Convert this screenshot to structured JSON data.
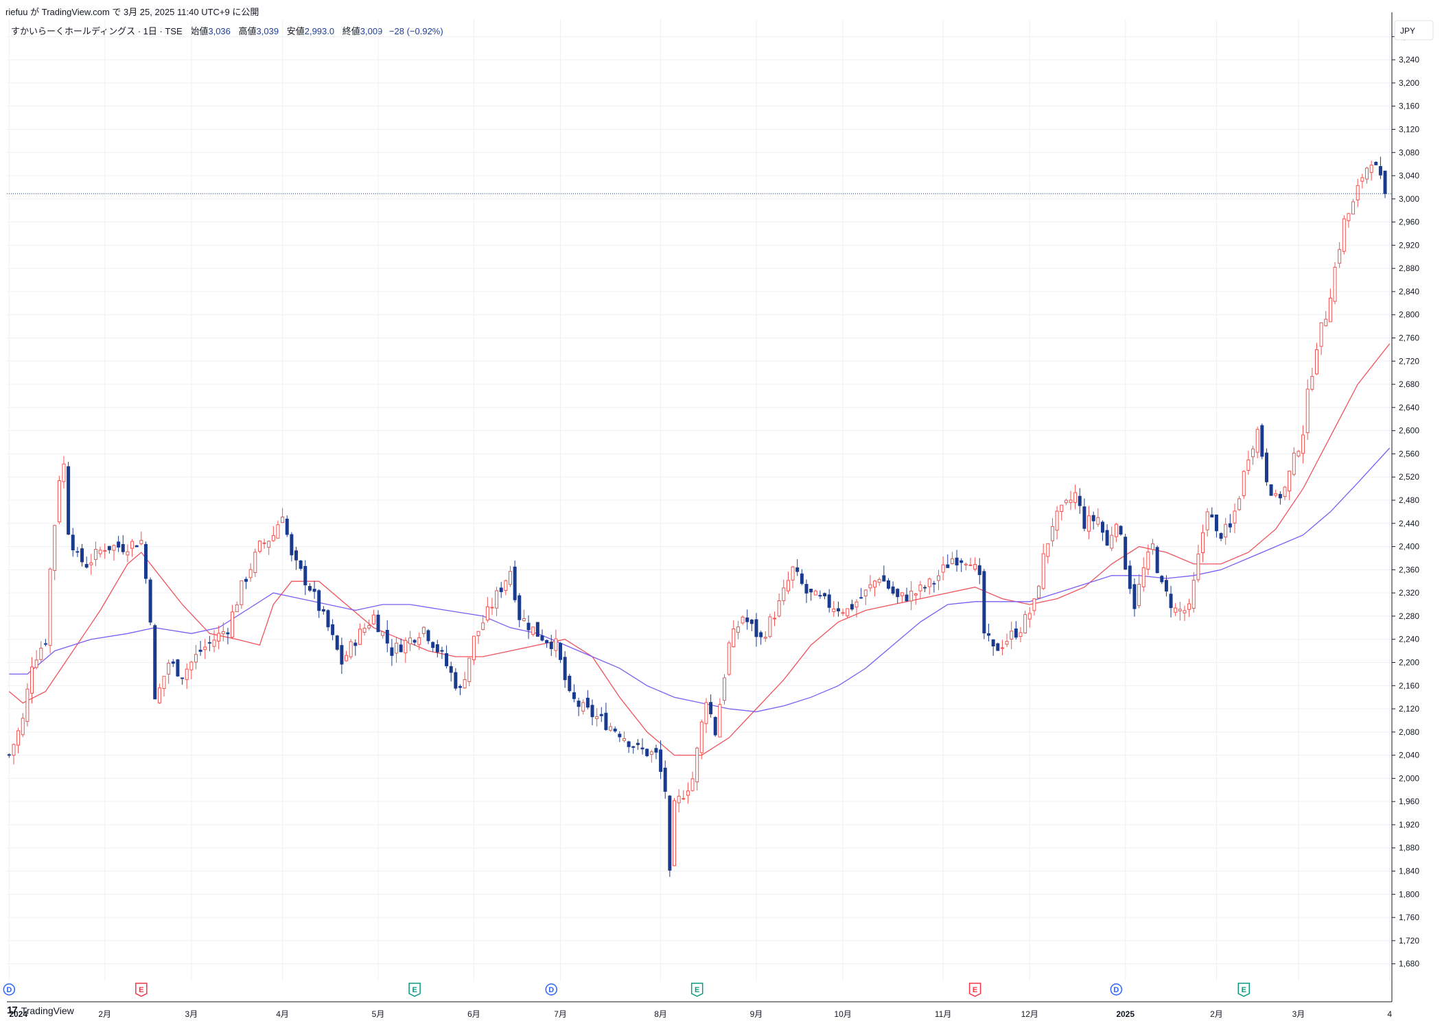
{
  "header": {
    "published": "riefuu が TradingView.com で 3月 25, 2025 11:40 UTC+9 に公開"
  },
  "legend": {
    "symbol": "すかいらーくホールディングス · 1日 · TSE",
    "open_label": "始値",
    "open_value": "3,036",
    "high_label": "高値",
    "high_value": "3,039",
    "low_label": "安値",
    "low_value": "2,993.0",
    "close_label": "終値",
    "close_value": "3,009",
    "change": "−28 (−0.92%)"
  },
  "currency": "JPY",
  "footer": {
    "brand": "TradingView",
    "logo": "17"
  },
  "colors": {
    "up": "#ef5350",
    "down": "#1a3a8f",
    "ma_fast": "#f0525a",
    "ma_slow": "#7b5cf5",
    "grid": "#eef0f3",
    "axis_text": "#131722"
  },
  "chart_data": {
    "type": "candlestick",
    "ylim": [
      1650,
      3310
    ],
    "y_ticks": [
      1680,
      1720,
      1760,
      1800,
      1840,
      1880,
      1920,
      1960,
      2000,
      2040,
      2080,
      2120,
      2160,
      2200,
      2240,
      2280,
      2320,
      2360,
      2400,
      2440,
      2480,
      2520,
      2560,
      2600,
      2640,
      2680,
      2720,
      2760,
      2800,
      2840,
      2880,
      2920,
      2960,
      3000,
      3040,
      3080,
      3120,
      3160,
      3200,
      3240,
      3280
    ],
    "y_tick_labels": [
      "1,680",
      "1,720",
      "1,760",
      "1,800",
      "1,840",
      "1,880",
      "1,920",
      "1,960",
      "2,000",
      "2,040",
      "2,080",
      "2,120",
      "2,160",
      "2,200",
      "2,240",
      "2,280",
      "2,320",
      "2,360",
      "2,400",
      "2,440",
      "2,480",
      "2,520",
      "2,560",
      "2,600",
      "2,640",
      "2,680",
      "2,720",
      "2,760",
      "2,800",
      "2,840",
      "2,880",
      "2,920",
      "2,960",
      "3,000",
      "3,040",
      "3,080",
      "3,120",
      "3,160",
      "3,200",
      "3,240",
      "3,280"
    ],
    "x_labels": [
      {
        "label": "2024",
        "bar": 0,
        "bold": true
      },
      {
        "label": "2月",
        "bar": 21
      },
      {
        "label": "3月",
        "bar": 40
      },
      {
        "label": "4月",
        "bar": 60
      },
      {
        "label": "5月",
        "bar": 81
      },
      {
        "label": "6月",
        "bar": 102
      },
      {
        "label": "7月",
        "bar": 121
      },
      {
        "label": "8月",
        "bar": 143
      },
      {
        "label": "9月",
        "bar": 164
      },
      {
        "label": "10月",
        "bar": 183
      },
      {
        "label": "11月",
        "bar": 205
      },
      {
        "label": "12月",
        "bar": 224
      },
      {
        "label": "2025",
        "bar": 245,
        "bold": true
      },
      {
        "label": "2月",
        "bar": 265
      },
      {
        "label": "3月",
        "bar": 283
      },
      {
        "label": "4",
        "bar": 303
      }
    ],
    "last_price": 3009,
    "events": [
      {
        "bar": 0,
        "type": "D"
      },
      {
        "bar": 29,
        "type": "E"
      },
      {
        "bar": 89,
        "type": "E"
      },
      {
        "bar": 119,
        "type": "D"
      },
      {
        "bar": 151,
        "type": "E"
      },
      {
        "bar": 212,
        "type": "E"
      },
      {
        "bar": 243,
        "type": "D"
      },
      {
        "bar": 271,
        "type": "E"
      }
    ],
    "anchors": [
      [
        0,
        2040
      ],
      [
        3,
        2100
      ],
      [
        5,
        2200
      ],
      [
        8,
        2240
      ],
      [
        9,
        2360
      ],
      [
        11,
        2520
      ],
      [
        12,
        2540
      ],
      [
        13,
        2430
      ],
      [
        15,
        2380
      ],
      [
        17,
        2370
      ],
      [
        21,
        2400
      ],
      [
        25,
        2400
      ],
      [
        29,
        2410
      ],
      [
        31,
        2280
      ],
      [
        32,
        2130
      ],
      [
        35,
        2200
      ],
      [
        38,
        2180
      ],
      [
        42,
        2220
      ],
      [
        45,
        2240
      ],
      [
        48,
        2260
      ],
      [
        51,
        2330
      ],
      [
        55,
        2400
      ],
      [
        58,
        2420
      ],
      [
        60,
        2460
      ],
      [
        62,
        2380
      ],
      [
        66,
        2330
      ],
      [
        70,
        2260
      ],
      [
        73,
        2200
      ],
      [
        76,
        2240
      ],
      [
        80,
        2280
      ],
      [
        84,
        2220
      ],
      [
        88,
        2240
      ],
      [
        91,
        2260
      ],
      [
        95,
        2210
      ],
      [
        99,
        2150
      ],
      [
        102,
        2240
      ],
      [
        106,
        2300
      ],
      [
        110,
        2360
      ],
      [
        112,
        2280
      ],
      [
        116,
        2250
      ],
      [
        120,
        2230
      ],
      [
        123,
        2140
      ],
      [
        126,
        2120
      ],
      [
        130,
        2100
      ],
      [
        134,
        2080
      ],
      [
        138,
        2050
      ],
      [
        142,
        2040
      ],
      [
        144,
        1980
      ],
      [
        145,
        1830
      ],
      [
        146,
        1950
      ],
      [
        150,
        2000
      ],
      [
        153,
        2140
      ],
      [
        155,
        2080
      ],
      [
        158,
        2230
      ],
      [
        161,
        2280
      ],
      [
        165,
        2240
      ],
      [
        169,
        2300
      ],
      [
        172,
        2360
      ],
      [
        175,
        2320
      ],
      [
        180,
        2300
      ],
      [
        184,
        2290
      ],
      [
        188,
        2320
      ],
      [
        191,
        2350
      ],
      [
        195,
        2310
      ],
      [
        199,
        2320
      ],
      [
        203,
        2340
      ],
      [
        207,
        2380
      ],
      [
        211,
        2380
      ],
      [
        213,
        2340
      ],
      [
        214,
        2250
      ],
      [
        216,
        2220
      ],
      [
        219,
        2240
      ],
      [
        222,
        2260
      ],
      [
        225,
        2300
      ],
      [
        227,
        2380
      ],
      [
        229,
        2440
      ],
      [
        232,
        2470
      ],
      [
        234,
        2490
      ],
      [
        236,
        2440
      ],
      [
        239,
        2450
      ],
      [
        241,
        2400
      ],
      [
        243,
        2450
      ],
      [
        245,
        2370
      ],
      [
        247,
        2300
      ],
      [
        249,
        2360
      ],
      [
        251,
        2400
      ],
      [
        253,
        2330
      ],
      [
        256,
        2290
      ],
      [
        259,
        2290
      ],
      [
        261,
        2380
      ],
      [
        263,
        2470
      ],
      [
        265,
        2420
      ],
      [
        268,
        2430
      ],
      [
        270,
        2490
      ],
      [
        272,
        2560
      ],
      [
        274,
        2600
      ],
      [
        276,
        2520
      ],
      [
        278,
        2480
      ],
      [
        280,
        2500
      ],
      [
        282,
        2550
      ],
      [
        284,
        2600
      ],
      [
        285,
        2660
      ],
      [
        287,
        2750
      ],
      [
        289,
        2800
      ],
      [
        291,
        2880
      ],
      [
        293,
        2960
      ],
      [
        295,
        2990
      ],
      [
        297,
        3040
      ],
      [
        299,
        3070
      ],
      [
        300,
        3050
      ],
      [
        302,
        3009
      ]
    ],
    "series": [
      {
        "name": "",
        "kind": "ma",
        "color": "#f0525a",
        "points": [
          [
            0,
            2150
          ],
          [
            3,
            2130
          ],
          [
            8,
            2150
          ],
          [
            14,
            2220
          ],
          [
            20,
            2290
          ],
          [
            26,
            2370
          ],
          [
            29,
            2390
          ],
          [
            33,
            2350
          ],
          [
            38,
            2300
          ],
          [
            44,
            2250
          ],
          [
            50,
            2240
          ],
          [
            55,
            2230
          ],
          [
            58,
            2300
          ],
          [
            62,
            2340
          ],
          [
            68,
            2340
          ],
          [
            74,
            2300
          ],
          [
            80,
            2260
          ],
          [
            86,
            2240
          ],
          [
            92,
            2220
          ],
          [
            98,
            2210
          ],
          [
            104,
            2210
          ],
          [
            110,
            2220
          ],
          [
            116,
            2230
          ],
          [
            122,
            2240
          ],
          [
            128,
            2210
          ],
          [
            134,
            2140
          ],
          [
            140,
            2080
          ],
          [
            146,
            2040
          ],
          [
            152,
            2040
          ],
          [
            158,
            2070
          ],
          [
            164,
            2120
          ],
          [
            170,
            2170
          ],
          [
            176,
            2230
          ],
          [
            182,
            2270
          ],
          [
            188,
            2290
          ],
          [
            194,
            2300
          ],
          [
            200,
            2310
          ],
          [
            206,
            2320
          ],
          [
            212,
            2330
          ],
          [
            218,
            2310
          ],
          [
            224,
            2300
          ],
          [
            230,
            2310
          ],
          [
            236,
            2330
          ],
          [
            242,
            2370
          ],
          [
            248,
            2400
          ],
          [
            254,
            2390
          ],
          [
            260,
            2370
          ],
          [
            266,
            2370
          ],
          [
            272,
            2390
          ],
          [
            278,
            2430
          ],
          [
            284,
            2500
          ],
          [
            290,
            2590
          ],
          [
            296,
            2680
          ],
          [
            303,
            2750
          ]
        ]
      },
      {
        "name": "",
        "kind": "ma",
        "color": "#7b5cf5",
        "points": [
          [
            0,
            2180
          ],
          [
            4,
            2180
          ],
          [
            10,
            2220
          ],
          [
            18,
            2240
          ],
          [
            26,
            2250
          ],
          [
            32,
            2260
          ],
          [
            40,
            2250
          ],
          [
            46,
            2260
          ],
          [
            52,
            2290
          ],
          [
            58,
            2320
          ],
          [
            64,
            2310
          ],
          [
            70,
            2300
          ],
          [
            76,
            2290
          ],
          [
            82,
            2300
          ],
          [
            88,
            2300
          ],
          [
            96,
            2290
          ],
          [
            104,
            2280
          ],
          [
            110,
            2260
          ],
          [
            116,
            2250
          ],
          [
            122,
            2230
          ],
          [
            128,
            2210
          ],
          [
            134,
            2190
          ],
          [
            140,
            2160
          ],
          [
            146,
            2140
          ],
          [
            152,
            2130
          ],
          [
            158,
            2120
          ],
          [
            164,
            2115
          ],
          [
            170,
            2125
          ],
          [
            176,
            2140
          ],
          [
            182,
            2160
          ],
          [
            188,
            2190
          ],
          [
            194,
            2230
          ],
          [
            200,
            2270
          ],
          [
            206,
            2300
          ],
          [
            212,
            2305
          ],
          [
            218,
            2305
          ],
          [
            224,
            2305
          ],
          [
            230,
            2320
          ],
          [
            236,
            2335
          ],
          [
            242,
            2350
          ],
          [
            248,
            2350
          ],
          [
            254,
            2345
          ],
          [
            260,
            2350
          ],
          [
            266,
            2360
          ],
          [
            272,
            2380
          ],
          [
            278,
            2400
          ],
          [
            284,
            2420
          ],
          [
            290,
            2460
          ],
          [
            296,
            2510
          ],
          [
            303,
            2570
          ]
        ]
      }
    ]
  }
}
